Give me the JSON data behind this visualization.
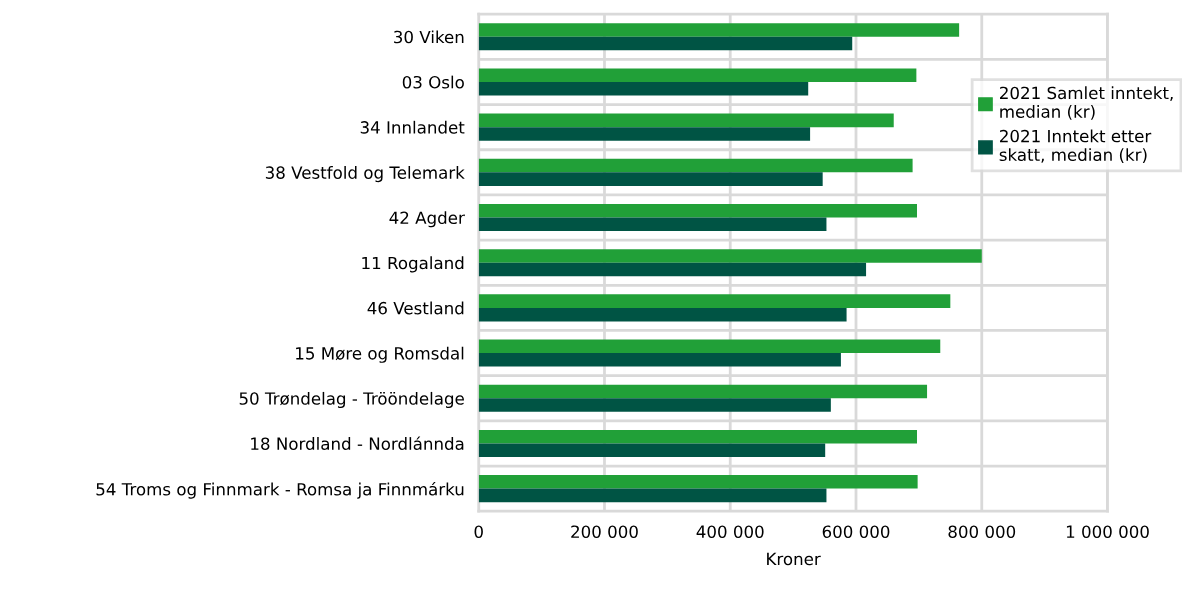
{
  "chart_data": {
    "type": "bar",
    "orientation": "horizontal",
    "xlabel": "Kroner",
    "categories": [
      "30 Viken",
      "03 Oslo",
      "34 Innlandet",
      "38 Vestfold og Telemark",
      "42 Agder",
      "11 Rogaland",
      "46 Vestland",
      "15 Møre og Romsdal",
      "50 Trøndelag - Trööndelage",
      "18 Nordland - Nordlánnda",
      "54 Troms og Finnmark - Romsa ja Finnmárku"
    ],
    "series": [
      {
        "name": "2021 Samlet inntekt, median (kr)",
        "color": "#21a038",
        "values": [
          764000,
          696000,
          660000,
          690000,
          697000,
          800000,
          750000,
          734000,
          713000,
          697000,
          698000
        ]
      },
      {
        "name": "2021 Inntekt etter skatt, median (kr)",
        "color": "#005444",
        "values": [
          594000,
          524000,
          527000,
          547000,
          553000,
          616000,
          585000,
          576000,
          560000,
          551000,
          553000
        ]
      }
    ],
    "xlim": [
      0,
      1000000
    ],
    "xticks": [
      {
        "value": 0,
        "label": "0"
      },
      {
        "value": 200000,
        "label": "200 000"
      },
      {
        "value": 400000,
        "label": "400 000"
      },
      {
        "value": 600000,
        "label": "600 000"
      },
      {
        "value": 800000,
        "label": "800 000"
      },
      {
        "value": 1000000,
        "label": "1 000 000"
      }
    ],
    "grid": true,
    "legend": "top right"
  }
}
